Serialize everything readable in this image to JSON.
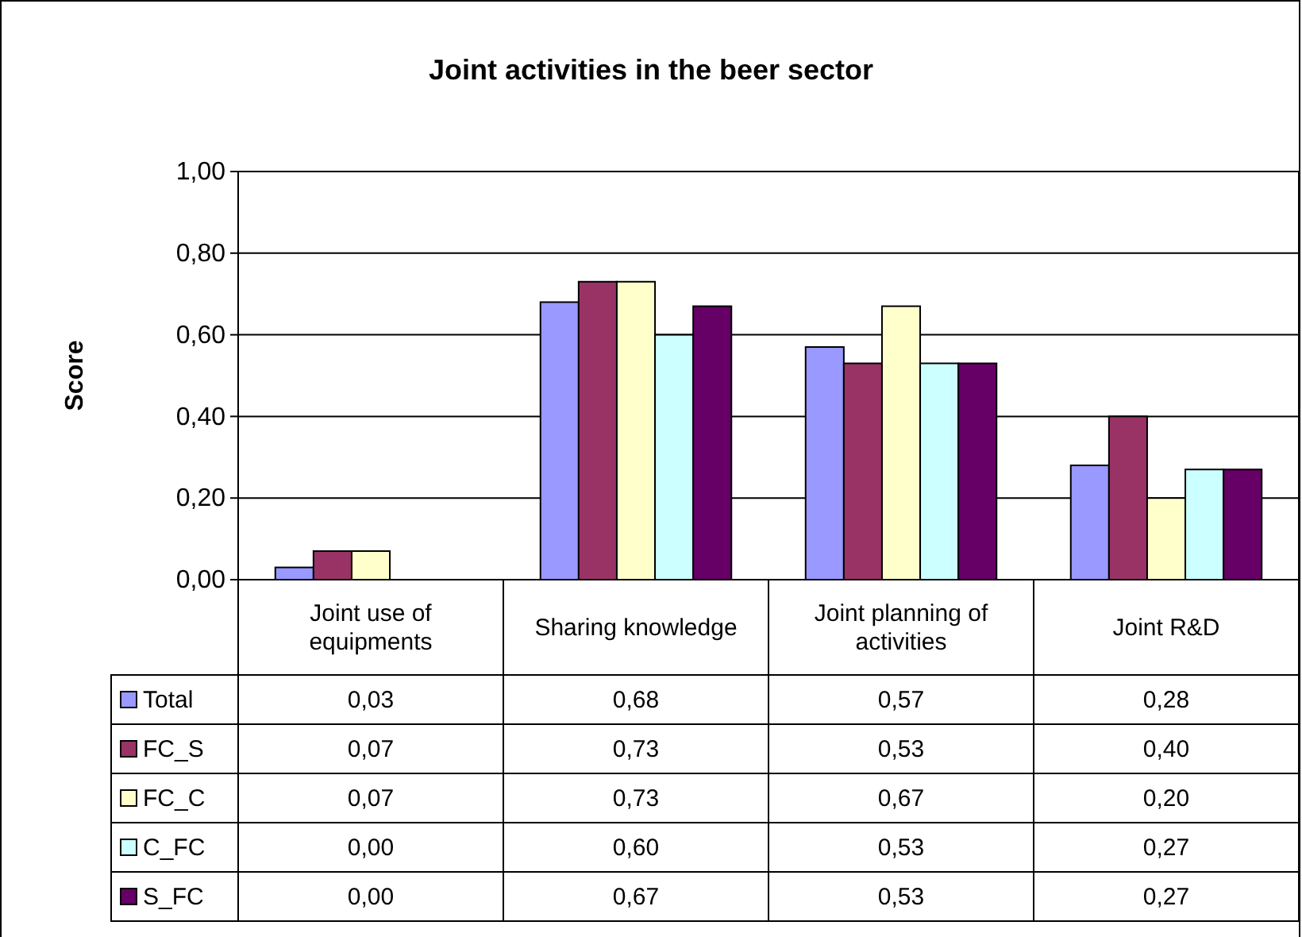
{
  "chart_data": {
    "type": "bar",
    "title": "Joint activities in the beer sector",
    "ylabel": "Score",
    "categories": [
      "Joint use of equipments",
      "Sharing knowledge",
      "Joint planning of activities",
      "Joint R&D"
    ],
    "series": [
      {
        "name": "Total",
        "color": "#9999ff",
        "values": [
          0.03,
          0.68,
          0.57,
          0.28
        ],
        "value_labels": [
          "0,03",
          "0,68",
          "0,57",
          "0,28"
        ]
      },
      {
        "name": "FC_S",
        "color": "#993366",
        "values": [
          0.07,
          0.73,
          0.53,
          0.4
        ],
        "value_labels": [
          "0,07",
          "0,73",
          "0,53",
          "0,40"
        ]
      },
      {
        "name": "FC_C",
        "color": "#ffffcc",
        "values": [
          0.07,
          0.73,
          0.67,
          0.2
        ],
        "value_labels": [
          "0,07",
          "0,73",
          "0,67",
          "0,20"
        ]
      },
      {
        "name": "C_FC",
        "color": "#ccffff",
        "values": [
          0.0,
          0.6,
          0.53,
          0.27
        ],
        "value_labels": [
          "0,00",
          "0,60",
          "0,53",
          "0,27"
        ]
      },
      {
        "name": "S_FC",
        "color": "#660066",
        "values": [
          0.0,
          0.67,
          0.53,
          0.27
        ],
        "value_labels": [
          "0,00",
          "0,67",
          "0,53",
          "0,27"
        ]
      }
    ],
    "ylim": [
      0,
      1
    ],
    "yticks": [
      {
        "value": 0,
        "label": "0,00"
      },
      {
        "value": 0.2,
        "label": "0,20"
      },
      {
        "value": 0.4,
        "label": "0,40"
      },
      {
        "value": 0.6,
        "label": "0,60"
      },
      {
        "value": 0.8,
        "label": "0,80"
      },
      {
        "value": 1,
        "label": "1,00"
      }
    ],
    "grid": "y",
    "legend": "bottom"
  }
}
